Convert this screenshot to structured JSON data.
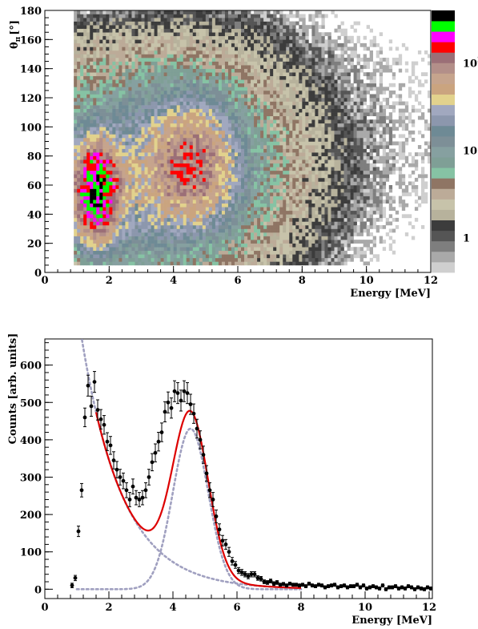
{
  "chart_data": [
    {
      "type": "heatmap",
      "xlabel": "Energy [MeV]",
      "ylabel_symbol": "θ",
      "ylabel_subscript": "π",
      "ylabel_unit": "[°]",
      "xlim": [
        0,
        12
      ],
      "ylim": [
        0,
        180
      ],
      "x_ticks": [
        0,
        2,
        4,
        6,
        8,
        10,
        12
      ],
      "y_ticks": [
        0,
        20,
        40,
        60,
        80,
        100,
        120,
        140,
        160,
        180
      ],
      "colorbar": {
        "scale": "log",
        "range": [
          0.4,
          400
        ],
        "tick_labels": [
          {
            "value": 1,
            "text": "1"
          },
          {
            "value": 10,
            "text": "10"
          },
          {
            "value": 100,
            "text": "10",
            "sup": "2"
          }
        ],
        "colors": [
          "#cfcfcf",
          "#a9a9a9",
          "#7e7e7e",
          "#555555",
          "#3c3c3c",
          "#b7b29c",
          "#c7c3aa",
          "#bcab98",
          "#8f7564",
          "#86c3a4",
          "#7f9f96",
          "#86a0a0",
          "#7d8f97",
          "#6e8a95",
          "#8c97ad",
          "#a1a8bf",
          "#e2d28d",
          "#caa47f",
          "#c6a48d",
          "#b38f89",
          "#9b6f77",
          "#ff0000",
          "#ff00ff",
          "#00ff00",
          "#000000"
        ]
      },
      "density_model": {
        "components": [
          {
            "e": 1.55,
            "theta": 55,
            "se": 0.4,
            "st": 18,
            "amp": 300
          },
          {
            "e": 4.5,
            "theta": 72,
            "se": 0.75,
            "st": 22,
            "amp": 110
          },
          {
            "e": 2.9,
            "theta": 62,
            "se": 0.9,
            "st": 30,
            "amp": 22
          },
          {
            "e": 4.3,
            "theta": 70,
            "se": 2.2,
            "st": 48,
            "amp": 9
          }
        ],
        "energy_min": 0.9,
        "theta_range": [
          5,
          178
        ]
      }
    },
    {
      "type": "scatter",
      "xlabel": "Energy [MeV]",
      "ylabel": "Counts [arb. units]",
      "xlim": [
        0,
        12.1
      ],
      "ylim": [
        -25,
        670
      ],
      "x_ticks": [
        0,
        2,
        4,
        6,
        8,
        10,
        12
      ],
      "y_ticks": [
        0,
        100,
        200,
        300,
        400,
        500,
        600
      ],
      "points": {
        "x": [
          0.85,
          0.95,
          1.05,
          1.15,
          1.25,
          1.35,
          1.45,
          1.55,
          1.65,
          1.75,
          1.85,
          1.95,
          2.05,
          2.15,
          2.25,
          2.35,
          2.45,
          2.55,
          2.65,
          2.75,
          2.85,
          2.95,
          3.05,
          3.15,
          3.25,
          3.35,
          3.45,
          3.55,
          3.65,
          3.75,
          3.85,
          3.95,
          4.05,
          4.15,
          4.25,
          4.35,
          4.45,
          4.55,
          4.65,
          4.75,
          4.85,
          4.95,
          5.05,
          5.15,
          5.25,
          5.35,
          5.45,
          5.55,
          5.65,
          5.75,
          5.85,
          5.95,
          6.05,
          6.15,
          6.25,
          6.35,
          6.45,
          6.55,
          6.65,
          6.75,
          6.85,
          6.95,
          7.05,
          7.15,
          7.25,
          7.35,
          7.45,
          7.55,
          7.65,
          7.75,
          7.85,
          7.95,
          8.05,
          8.15,
          8.25,
          8.35,
          8.45,
          8.55,
          8.65,
          8.75,
          8.85,
          8.95,
          9.05,
          9.15,
          9.25,
          9.35,
          9.45,
          9.55,
          9.65,
          9.75,
          9.85,
          9.95,
          10.05,
          10.15,
          10.25,
          10.35,
          10.45,
          10.55,
          10.65,
          10.75,
          10.85,
          10.95,
          11.05,
          11.15,
          11.25,
          11.35,
          11.45,
          11.55,
          11.65,
          11.75,
          11.85,
          11.95,
          12.05
        ],
        "y": [
          10,
          30,
          155,
          265,
          460,
          545,
          490,
          555,
          480,
          455,
          440,
          395,
          385,
          345,
          320,
          300,
          290,
          265,
          240,
          275,
          245,
          240,
          245,
          265,
          300,
          340,
          365,
          395,
          420,
          475,
          500,
          485,
          530,
          525,
          505,
          530,
          525,
          495,
          470,
          430,
          400,
          360,
          310,
          265,
          240,
          195,
          160,
          130,
          120,
          100,
          75,
          65,
          50,
          45,
          40,
          35,
          40,
          40,
          30,
          28,
          20,
          18,
          22,
          15,
          18,
          12,
          14,
          10,
          15,
          12,
          12,
          10,
          12,
          8,
          15,
          10,
          8,
          12,
          10,
          5,
          8,
          10,
          12,
          5,
          8,
          10,
          5,
          8,
          8,
          12,
          5,
          10,
          2,
          5,
          8,
          5,
          2,
          10,
          0,
          5,
          5,
          8,
          2,
          5,
          2,
          8,
          5,
          0,
          5,
          2,
          0,
          5,
          2
        ],
        "err": [
          6,
          7,
          14,
          18,
          25,
          28,
          27,
          28,
          27,
          26,
          25,
          24,
          24,
          23,
          22,
          21,
          21,
          20,
          19,
          20,
          19,
          19,
          19,
          20,
          21,
          23,
          24,
          25,
          25,
          27,
          28,
          27,
          28,
          28,
          28,
          28,
          28,
          27,
          26,
          25,
          24,
          23,
          21,
          20,
          19,
          17,
          15,
          14,
          13,
          12,
          10,
          9,
          8,
          8,
          7,
          7,
          7,
          7,
          6,
          6,
          5,
          5,
          5,
          5,
          5,
          4,
          4,
          4,
          4,
          4,
          4,
          4,
          4,
          4,
          4,
          4,
          4,
          4,
          4,
          4,
          4,
          4,
          4,
          4,
          4,
          4,
          4,
          4,
          4,
          4,
          4,
          4,
          4,
          4,
          4,
          4,
          4,
          4,
          4,
          4,
          4,
          4,
          4,
          4,
          4,
          4,
          4,
          4,
          4,
          4,
          4,
          4,
          4
        ]
      },
      "fit_components": [
        {
          "kind": "exponential",
          "a": 1650,
          "b": 0.78,
          "x_range": [
            1.0,
            8.0
          ],
          "style": "dotted",
          "color": "#a0a0c0"
        },
        {
          "kind": "gaussian",
          "amp": 430,
          "mu": 4.55,
          "sigma": 0.55,
          "x_range": [
            1.0,
            8.0
          ],
          "style": "dotted",
          "color": "#a0a0c0"
        }
      ],
      "fit_total": {
        "x_range": [
          1.6,
          8.0
        ],
        "color": "#dd0000"
      }
    }
  ]
}
